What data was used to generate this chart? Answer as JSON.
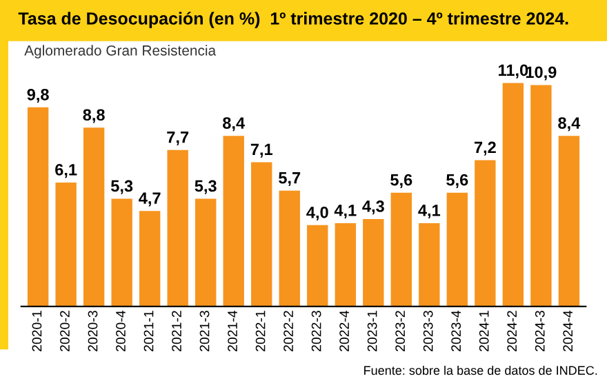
{
  "chart_data": {
    "type": "bar",
    "title": "Tasa de Desocupación (en %)  1º trimestre 2020 – 4º trimestre 2024.",
    "subtitle": "Aglomerado Gran Resistencia",
    "categories": [
      "2020-1",
      "2020-2",
      "2020-3",
      "2020-4",
      "2021-1",
      "2021-2",
      "2021-3",
      "2021-4",
      "2022-1",
      "2022-2",
      "2022-3",
      "2022-4",
      "2023-1",
      "2023-2",
      "2023-3",
      "2023-4",
      "2024-1",
      "2024-2",
      "2024-3",
      "2024-4"
    ],
    "values": [
      9.8,
      6.1,
      8.8,
      5.3,
      4.7,
      7.7,
      5.3,
      8.4,
      7.1,
      5.7,
      4.0,
      4.1,
      4.3,
      5.6,
      4.1,
      5.6,
      7.2,
      11.0,
      10.9,
      8.4
    ],
    "value_labels": [
      "9,8",
      "6,1",
      "8,8",
      "5,3",
      "4,7",
      "7,7",
      "5,3",
      "8,4",
      "7,1",
      "5,7",
      "4,0",
      "4,1",
      "4,3",
      "5,6",
      "4,1",
      "5,6",
      "7,2",
      "11,0",
      "10,9",
      "8,4"
    ],
    "color": "#f7941d",
    "grid": false,
    "annotations": [
      "Fuente: sobre la base de datos de INDEC."
    ]
  }
}
